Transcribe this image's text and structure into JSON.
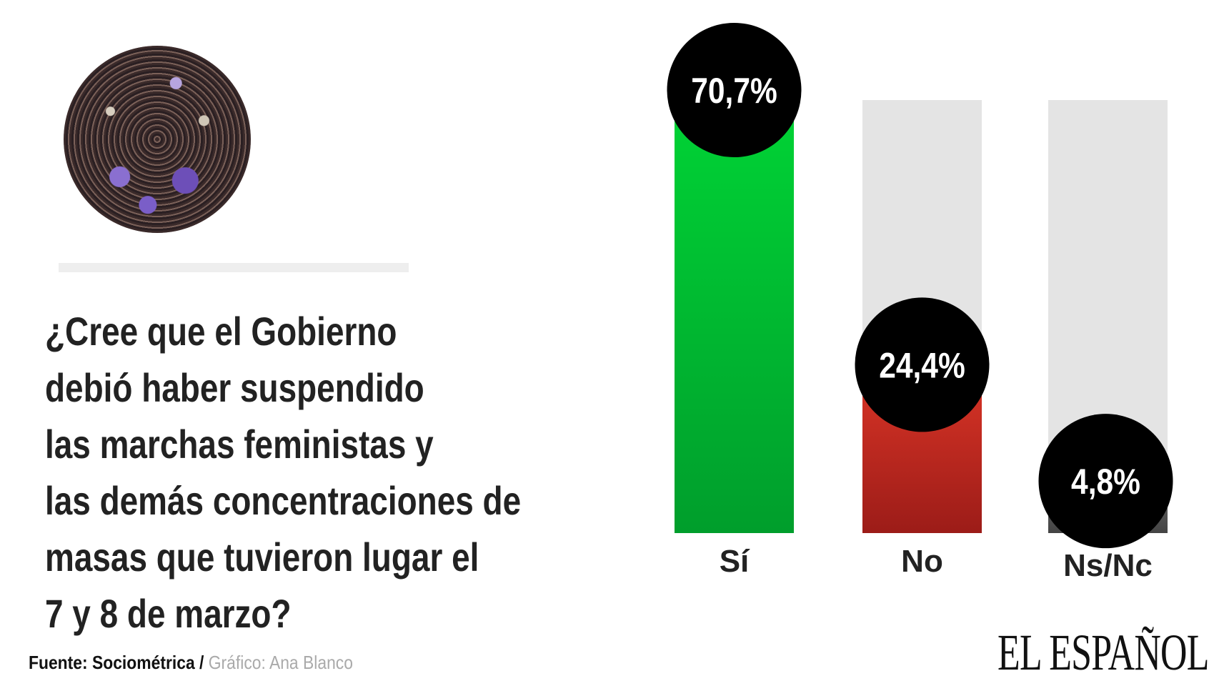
{
  "title_lines": [
    "¿Cree que el Gobierno",
    "debió haber suspendido",
    "las marchas feministas y",
    "las demás concentraciones de",
    "masas que tuvieron lugar el",
    "7 y 8 de marzo?"
  ],
  "footer": {
    "source": "Fuente: Sociométrica",
    "separator": " / ",
    "credit": "Gráfico: Ana Blanco"
  },
  "logo": "EL ESPAÑOL",
  "chart_data": {
    "type": "bar",
    "title": "¿Cree que el Gobierno debió haber suspendido las marchas feministas y las demás concentraciones de masas que tuvieron lugar el 7 y 8 de marzo?",
    "categories": [
      "Sí",
      "No",
      "Ns/Nc"
    ],
    "values": [
      70.7,
      24.4,
      4.8
    ],
    "value_labels": [
      "70,7%",
      "24,4%",
      "4,8%"
    ],
    "colors": [
      [
        "#00d235",
        "#009e2c"
      ],
      [
        "#d33225",
        "#9c1c18"
      ],
      [
        "#5a5a5a",
        "#444444"
      ]
    ],
    "track_color": "#e4e4e4",
    "unit": "%"
  }
}
